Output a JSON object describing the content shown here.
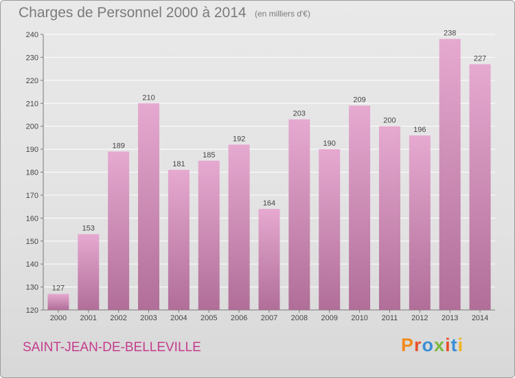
{
  "colors": {
    "bar_top": "#e6a9d0",
    "bar_bottom": "#b06e98",
    "commune": "#c43b8c",
    "logo_letters": [
      "#f28a1c",
      "#e8502a",
      "#3a8ed6",
      "#7bb83a",
      "#e8502a",
      "#3a8ed6",
      "#f2b31c"
    ]
  },
  "logo": {
    "text": "Proxiti"
  },
  "commune": "SAINT-JEAN-DE-BELLEVILLE",
  "chart_data": {
    "type": "bar",
    "title": "Charges de Personnel 2000 à 2014",
    "subtitle": "(en milliers d'€)",
    "categories": [
      "2000",
      "2001",
      "2002",
      "2003",
      "2004",
      "2005",
      "2006",
      "2007",
      "2008",
      "2009",
      "2010",
      "2011",
      "2012",
      "2013",
      "2014"
    ],
    "values": [
      127,
      153,
      189,
      210,
      181,
      185,
      192,
      164,
      203,
      190,
      209,
      200,
      196,
      238,
      227
    ],
    "ylim": [
      120,
      240
    ],
    "yticks": [
      120,
      130,
      140,
      150,
      160,
      170,
      180,
      190,
      200,
      210,
      220,
      230,
      240
    ],
    "grid": true,
    "xlabel": "",
    "ylabel": ""
  }
}
